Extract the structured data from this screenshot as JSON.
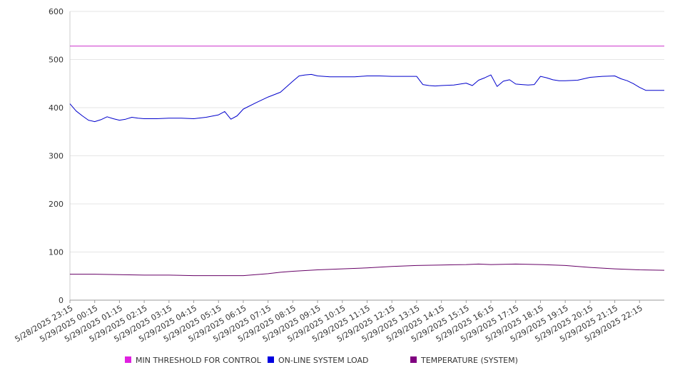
{
  "chart_data": {
    "type": "line",
    "ylim": [
      0,
      600
    ],
    "yticks": [
      0,
      100,
      200,
      300,
      400,
      500,
      600
    ],
    "x_tick_labels": [
      "5/28/2025 23:15",
      "5/29/2025 00:15",
      "5/29/2025 01:15",
      "5/29/2025 02:15",
      "5/29/2025 03:15",
      "5/29/2025 04:15",
      "5/29/2025 05:15",
      "5/29/2025 06:15",
      "5/29/2025 07:15",
      "5/29/2025 08:15",
      "5/29/2025 09:15",
      "5/29/2025 10:15",
      "5/29/2025 11:15",
      "5/29/2025 12:15",
      "5/29/2025 13:15",
      "5/29/2025 14:15",
      "5/29/2025 15:15",
      "5/29/2025 16:15",
      "5/29/2025 17:15",
      "5/29/2025 18:15",
      "5/29/2025 19:15",
      "5/29/2025 20:15",
      "5/29/2025 21:15",
      "5/29/2025 22:15"
    ],
    "x_start": "5/28/2025 23:15",
    "x_end": "5/29/2025 23:15",
    "grid": true,
    "legend_position": "bottom",
    "series": [
      {
        "name": "MIN THRESHOLD FOR CONTROL",
        "color": "#cc33cc",
        "legend_color": "#e020e0",
        "x_hours": [
          0,
          24
        ],
        "values": [
          528,
          528
        ]
      },
      {
        "name": "ON-LINE SYSTEM LOAD",
        "color": "#0000cc",
        "legend_color": "#0000e0",
        "x_hours": [
          0,
          0.25,
          0.5,
          0.75,
          1,
          1.25,
          1.5,
          1.75,
          2,
          2.25,
          2.5,
          2.75,
          3,
          3.5,
          4,
          4.5,
          5,
          5.5,
          6,
          6.25,
          6.5,
          6.75,
          7,
          7.5,
          8,
          8.5,
          9,
          9.25,
          9.5,
          9.75,
          10,
          10.5,
          11,
          11.5,
          12,
          12.5,
          13,
          13.5,
          14,
          14.25,
          14.5,
          14.75,
          15,
          15.5,
          16,
          16.25,
          16.5,
          16.75,
          17,
          17.25,
          17.5,
          17.75,
          18,
          18.25,
          18.5,
          18.75,
          19,
          19.25,
          19.5,
          19.75,
          20,
          20.5,
          21,
          21.5,
          22,
          22.25,
          22.5,
          22.75,
          23,
          23.25,
          23.5,
          23.75,
          24
        ],
        "values": [
          408,
          393,
          383,
          374,
          371,
          375,
          381,
          377,
          374,
          376,
          380,
          378,
          377,
          377,
          378,
          378,
          377,
          380,
          385,
          392,
          376,
          383,
          397,
          410,
          422,
          432,
          455,
          466,
          468,
          469,
          466,
          464,
          464,
          464,
          466,
          466,
          465,
          465,
          465,
          448,
          446,
          445,
          446,
          447,
          451,
          446,
          457,
          462,
          468,
          444,
          455,
          458,
          449,
          448,
          447,
          448,
          465,
          462,
          458,
          456,
          456,
          457,
          463,
          465,
          466,
          460,
          456,
          450,
          442,
          436,
          436,
          436,
          436
        ]
      },
      {
        "name": "TEMPERATURE (SYSTEM)",
        "color": "#660066",
        "legend_color": "#800080",
        "x_hours": [
          0,
          1,
          2,
          3,
          4,
          5,
          6,
          6.5,
          7,
          7.5,
          8,
          8.5,
          9,
          10,
          11,
          12,
          13,
          14,
          15,
          16,
          16.5,
          17,
          18,
          19,
          20,
          21,
          22,
          23,
          24
        ],
        "values": [
          54,
          54,
          53,
          52,
          52,
          51,
          51,
          51,
          51,
          53,
          55,
          58,
          60,
          63,
          65,
          67,
          70,
          72,
          73,
          74,
          75,
          74,
          75,
          74,
          72,
          68,
          65,
          63,
          62
        ]
      }
    ]
  }
}
